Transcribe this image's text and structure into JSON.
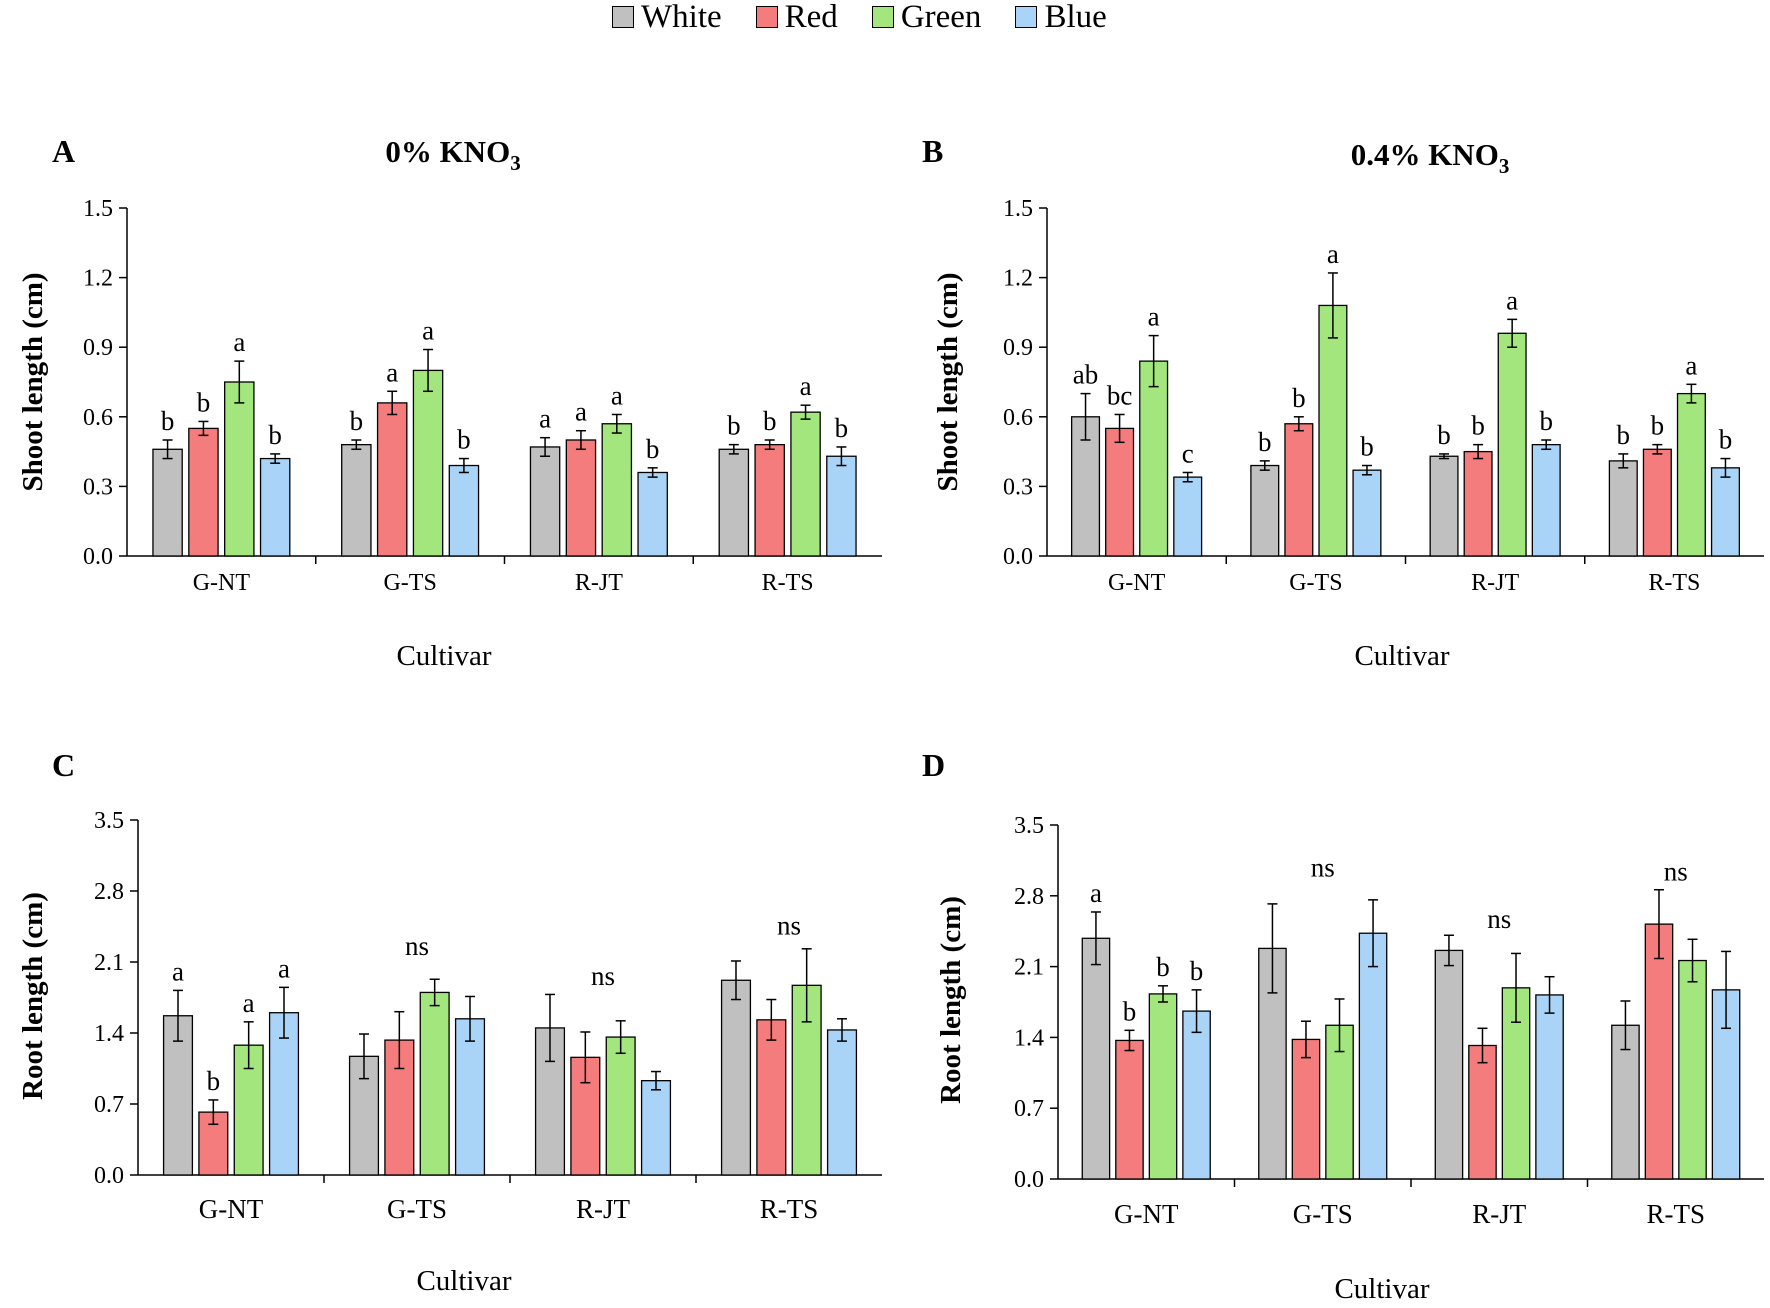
{
  "legend": [
    {
      "label": "White",
      "color": "#c0c0c0"
    },
    {
      "label": "Red",
      "color": "#f47c7c"
    },
    {
      "label": "Green",
      "color": "#a3e67d"
    },
    {
      "label": "Blue",
      "color": "#a9d3f7"
    }
  ],
  "chart_data": [
    {
      "panel": "A",
      "type": "bar",
      "title": "0% KNO3",
      "title_main": "0% KNO",
      "title_sub": "3",
      "xlabel": "Cultivar",
      "ylabel": "Shoot length (cm)",
      "ylim": [
        0,
        1.5
      ],
      "yticks": [
        "0.0",
        "0.3",
        "0.6",
        "0.9",
        "1.2",
        "1.5"
      ],
      "categories": [
        "G-NT",
        "G-TS",
        "R-JT",
        "R-TS"
      ],
      "series": [
        {
          "name": "White",
          "values": [
            0.46,
            0.48,
            0.47,
            0.46
          ],
          "errors": [
            0.04,
            0.02,
            0.04,
            0.02
          ]
        },
        {
          "name": "Red",
          "values": [
            0.55,
            0.66,
            0.5,
            0.48
          ],
          "errors": [
            0.03,
            0.05,
            0.04,
            0.02
          ]
        },
        {
          "name": "Green",
          "values": [
            0.75,
            0.8,
            0.57,
            0.62
          ],
          "errors": [
            0.09,
            0.09,
            0.04,
            0.03
          ]
        },
        {
          "name": "Blue",
          "values": [
            0.42,
            0.39,
            0.36,
            0.43
          ],
          "errors": [
            0.02,
            0.03,
            0.02,
            0.04
          ]
        }
      ],
      "letters": [
        [
          "b",
          "b",
          "a",
          "b"
        ],
        [
          "b",
          "a",
          "a",
          "b"
        ],
        [
          "a",
          "a",
          "a",
          "b"
        ],
        [
          "b",
          "b",
          "a",
          "b"
        ]
      ],
      "ns": []
    },
    {
      "panel": "B",
      "type": "bar",
      "title": "0.4% KNO3",
      "title_main": "0.4% KNO",
      "title_sub": "3",
      "xlabel": "Cultivar",
      "ylabel": "Shoot length (cm)",
      "ylim": [
        0,
        1.5
      ],
      "yticks": [
        "0.0",
        "0.3",
        "0.6",
        "0.9",
        "1.2",
        "1.5"
      ],
      "categories": [
        "G-NT",
        "G-TS",
        "R-JT",
        "R-TS"
      ],
      "series": [
        {
          "name": "White",
          "values": [
            0.6,
            0.39,
            0.43,
            0.41
          ],
          "errors": [
            0.1,
            0.02,
            0.01,
            0.03
          ]
        },
        {
          "name": "Red",
          "values": [
            0.55,
            0.57,
            0.45,
            0.46
          ],
          "errors": [
            0.06,
            0.03,
            0.03,
            0.02
          ]
        },
        {
          "name": "Green",
          "values": [
            0.84,
            1.08,
            0.96,
            0.7
          ],
          "errors": [
            0.11,
            0.14,
            0.06,
            0.04
          ]
        },
        {
          "name": "Blue",
          "values": [
            0.34,
            0.37,
            0.48,
            0.38
          ],
          "errors": [
            0.02,
            0.02,
            0.02,
            0.04
          ]
        }
      ],
      "letters": [
        [
          "ab",
          "bc",
          "a",
          "c"
        ],
        [
          "b",
          "b",
          "a",
          "b"
        ],
        [
          "b",
          "b",
          "a",
          "b"
        ],
        [
          "b",
          "b",
          "a",
          "b"
        ]
      ],
      "ns": []
    },
    {
      "panel": "C",
      "type": "bar",
      "title": "",
      "title_main": "",
      "title_sub": "",
      "xlabel": "Cultivar",
      "ylabel": "Root length (cm)",
      "ylim": [
        0,
        3.5
      ],
      "yticks": [
        "0.0",
        "0.7",
        "1.4",
        "2.1",
        "2.8",
        "3.5"
      ],
      "categories": [
        "G-NT",
        "G-TS",
        "R-JT",
        "R-TS"
      ],
      "series": [
        {
          "name": "White",
          "values": [
            1.57,
            1.17,
            1.45,
            1.92
          ],
          "errors": [
            0.25,
            0.22,
            0.33,
            0.19
          ]
        },
        {
          "name": "Red",
          "values": [
            0.62,
            1.33,
            1.16,
            1.53
          ],
          "errors": [
            0.12,
            0.28,
            0.25,
            0.2
          ]
        },
        {
          "name": "Green",
          "values": [
            1.28,
            1.8,
            1.36,
            1.87
          ],
          "errors": [
            0.23,
            0.13,
            0.16,
            0.36
          ]
        },
        {
          "name": "Blue",
          "values": [
            1.6,
            1.54,
            0.93,
            1.43
          ],
          "errors": [
            0.25,
            0.22,
            0.09,
            0.11
          ]
        }
      ],
      "letters": [
        [
          "a",
          "b",
          "a",
          "a"
        ],
        [],
        [],
        []
      ],
      "ns": [
        {
          "label": "ns",
          "value": 2.25
        },
        {
          "label": "ns",
          "value": 1.95
        },
        {
          "label": "ns",
          "value": 2.45
        }
      ]
    },
    {
      "panel": "D",
      "type": "bar",
      "title": "",
      "title_main": "",
      "title_sub": "",
      "xlabel": "Cultivar",
      "ylabel": "Root length (cm)",
      "ylim": [
        0,
        3.5
      ],
      "yticks": [
        "0.0",
        "0.7",
        "1.4",
        "2.1",
        "2.8",
        "3.5"
      ],
      "categories": [
        "G-NT",
        "G-TS",
        "R-JT",
        "R-TS"
      ],
      "series": [
        {
          "name": "White",
          "values": [
            2.38,
            2.28,
            2.26,
            1.52
          ],
          "errors": [
            0.26,
            0.44,
            0.15,
            0.24
          ]
        },
        {
          "name": "Red",
          "values": [
            1.37,
            1.38,
            1.32,
            2.52
          ],
          "errors": [
            0.1,
            0.18,
            0.17,
            0.34
          ]
        },
        {
          "name": "Green",
          "values": [
            1.83,
            1.52,
            1.89,
            2.16
          ],
          "errors": [
            0.08,
            0.26,
            0.34,
            0.21
          ]
        },
        {
          "name": "Blue",
          "values": [
            1.66,
            2.43,
            1.82,
            1.87
          ],
          "errors": [
            0.21,
            0.33,
            0.18,
            0.38
          ]
        }
      ],
      "letters": [
        [
          "a",
          "b",
          "b",
          "b"
        ],
        [],
        [],
        []
      ],
      "ns": [
        {
          "label": "ns",
          "value": 3.07
        },
        {
          "label": "ns",
          "value": 2.56
        },
        {
          "label": "ns",
          "value": 3.03
        }
      ]
    }
  ]
}
